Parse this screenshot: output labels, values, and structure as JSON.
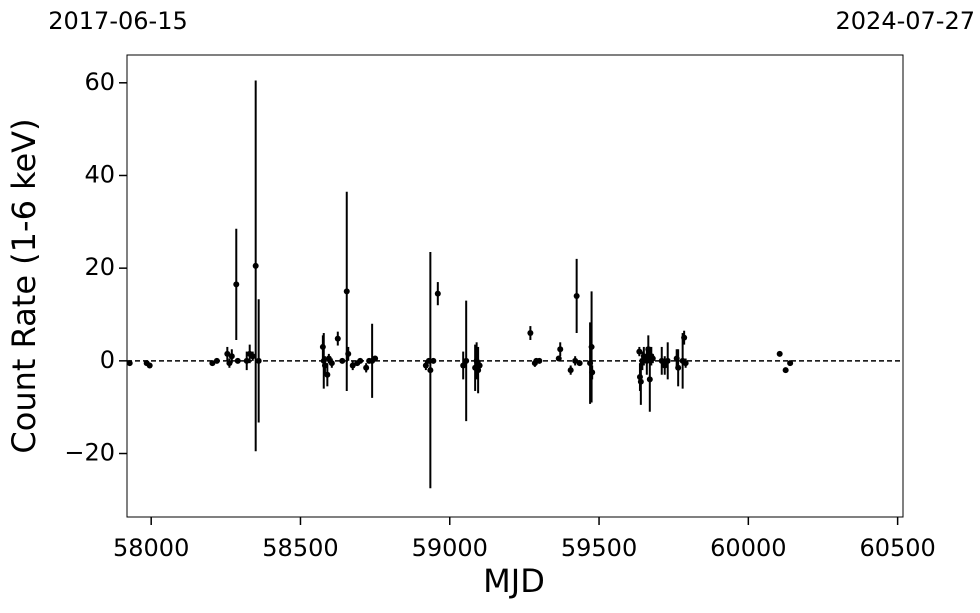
{
  "chart_data": {
    "type": "errorbar",
    "annotations": [
      "2017-06-15",
      "2024-07-27"
    ],
    "x_label": "MJD",
    "y_label": "Count Rate (1-6 keV)",
    "color": "#000000",
    "xlim": [
      57919,
      60518
    ],
    "ylim": [
      -33.7,
      66
    ],
    "xticks": [
      58000,
      58500,
      59000,
      59500,
      60000,
      60500
    ],
    "yticks": [
      {
        "value": -20,
        "label": "−20"
      },
      0,
      20,
      40,
      60
    ],
    "reference_line": 0,
    "x": [
      57928,
      57985,
      57995,
      58205,
      58220,
      58255,
      58262,
      58270,
      58285,
      58290,
      58320,
      58330,
      58340,
      58350,
      58360,
      58575,
      58578,
      58582,
      58590,
      58595,
      58605,
      58625,
      58640,
      58655,
      58660,
      58675,
      58690,
      58700,
      58720,
      58730,
      58740,
      58750,
      58920,
      58930,
      58935,
      58945,
      58960,
      59045,
      59055,
      59085,
      59090,
      59095,
      59100,
      59270,
      59285,
      59290,
      59300,
      59365,
      59370,
      59405,
      59420,
      59425,
      59435,
      59470,
      59475,
      59477,
      59635,
      59637,
      59640,
      59645,
      59650,
      59655,
      59660,
      59665,
      59670,
      59675,
      59680,
      59710,
      59720,
      59730,
      59760,
      59765,
      59780,
      59785,
      59790,
      60105,
      60125,
      60140
    ],
    "values": [
      -0.5,
      -0.5,
      -1,
      -0.5,
      0,
      1.5,
      -0.5,
      1,
      16.5,
      0,
      0,
      1.5,
      1,
      20.5,
      0,
      3,
      0,
      -1,
      -3,
      0.5,
      -0.5,
      4.8,
      0,
      15,
      1.5,
      -1,
      -0.5,
      0,
      -1.5,
      0,
      0,
      0.5,
      -1,
      0,
      -2,
      0,
      14.5,
      -1,
      0,
      -1.5,
      0,
      -2,
      -1,
      6,
      -0.5,
      0,
      0,
      0.5,
      2.5,
      -2,
      0,
      14,
      -0.5,
      -0.5,
      3,
      -2.5,
      2,
      -3.5,
      -4.5,
      0,
      1,
      0.5,
      0,
      2.5,
      -4,
      1,
      0.5,
      0,
      -1,
      0,
      0.5,
      -1.5,
      0,
      5,
      -0.5,
      1.5,
      -2,
      -0.5
    ],
    "errors": [
      0.3,
      0.5,
      0.5,
      0.5,
      0.5,
      1.5,
      1,
      1.5,
      12,
      0.5,
      2,
      2,
      1,
      40,
      13.3,
      2.5,
      6,
      2,
      2.5,
      1,
      1,
      1.5,
      0.5,
      21.5,
      1.5,
      1,
      0.5,
      0.5,
      1,
      0.5,
      8,
      0.5,
      1,
      0.5,
      25.5,
      0.5,
      2.5,
      3,
      13,
      5,
      4,
      5,
      1,
      1.5,
      0.8,
      0.5,
      0.5,
      0.5,
      1.5,
      1,
      1,
      8,
      0.5,
      8.8,
      12,
      1.5,
      1,
      3,
      5,
      2,
      2,
      1,
      3,
      3,
      7,
      2,
      1,
      3,
      2,
      4,
      2,
      4,
      6,
      1.5,
      1,
      0.5,
      0.5,
      0.5
    ]
  }
}
